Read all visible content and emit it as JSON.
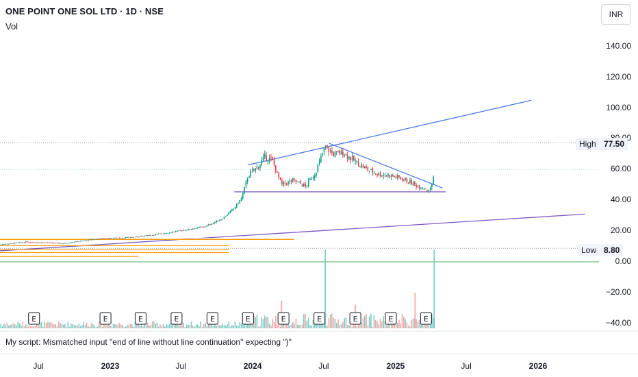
{
  "header": {
    "title": "ONE POINT ONE SOL LTD · 1D · NSE",
    "indicator": "Vol",
    "currency": "INR"
  },
  "y_axis": {
    "ticks": [
      {
        "label": "140.00",
        "value": 140
      },
      {
        "label": "120.00",
        "value": 120
      },
      {
        "label": "100.00",
        "value": 100
      },
      {
        "label": "80.00",
        "value": 80
      },
      {
        "label": "60.00",
        "value": 60
      },
      {
        "label": "40.00",
        "value": 40
      },
      {
        "label": "20.00",
        "value": 20
      },
      {
        "label": "0.00",
        "value": 0
      },
      {
        "label": "−20.00",
        "value": -20
      },
      {
        "label": "−40.00",
        "value": -40
      }
    ]
  },
  "tags": {
    "high_label": "High",
    "high_value": "77.50",
    "low_label": "Low",
    "low_value": "8.80"
  },
  "x_axis": {
    "ticks": [
      {
        "label": "Jul",
        "date": "2022-07-01",
        "bold": false
      },
      {
        "label": "2023",
        "date": "2023-01-01",
        "bold": true
      },
      {
        "label": "Jul",
        "date": "2023-07-01",
        "bold": false
      },
      {
        "label": "2024",
        "date": "2024-01-01",
        "bold": true
      },
      {
        "label": "Jul",
        "date": "2024-07-01",
        "bold": false
      },
      {
        "label": "2025",
        "date": "2025-01-01",
        "bold": true
      },
      {
        "label": "Jul",
        "date": "2025-07-01",
        "bold": false
      },
      {
        "label": "2026",
        "date": "2026-01-01",
        "bold": true
      }
    ]
  },
  "earnings_badge": "E",
  "message": "My script: Mismatched input \"end of line without line continuation\" expecting \")\"",
  "colors": {
    "up": "#089981",
    "down": "#f23645",
    "trendline": "#4a7ce8",
    "support": "#7e57c2",
    "orange": "#ff9800",
    "zero_line": "#4caf50"
  },
  "chart_data": {
    "type": "candlestick",
    "symbol": "ONE POINT ONE SOL LTD",
    "interval": "1D",
    "exchange": "NSE",
    "price_high": 77.5,
    "price_low": 8.8,
    "ylim": [
      -40,
      145
    ],
    "price_path": [
      {
        "date": "2022-03-15",
        "price": 11
      },
      {
        "date": "2022-06-01",
        "price": 13
      },
      {
        "date": "2022-09-01",
        "price": 12
      },
      {
        "date": "2022-12-01",
        "price": 15
      },
      {
        "date": "2023-03-01",
        "price": 16
      },
      {
        "date": "2023-06-01",
        "price": 19
      },
      {
        "date": "2023-09-01",
        "price": 23
      },
      {
        "date": "2023-10-15",
        "price": 28
      },
      {
        "date": "2023-11-15",
        "price": 35
      },
      {
        "date": "2023-12-05",
        "price": 42
      },
      {
        "date": "2023-12-20",
        "price": 56
      },
      {
        "date": "2024-01-15",
        "price": 62
      },
      {
        "date": "2024-02-01",
        "price": 68
      },
      {
        "date": "2024-02-20",
        "price": 66
      },
      {
        "date": "2024-03-15",
        "price": 50
      },
      {
        "date": "2024-04-15",
        "price": 53
      },
      {
        "date": "2024-05-15",
        "price": 49
      },
      {
        "date": "2024-06-10",
        "price": 58
      },
      {
        "date": "2024-07-05",
        "price": 75
      },
      {
        "date": "2024-07-25",
        "price": 70
      },
      {
        "date": "2024-08-20",
        "price": 71
      },
      {
        "date": "2024-09-20",
        "price": 65
      },
      {
        "date": "2024-10-20",
        "price": 60
      },
      {
        "date": "2024-11-20",
        "price": 57
      },
      {
        "date": "2024-12-20",
        "price": 56
      },
      {
        "date": "2025-01-20",
        "price": 54
      },
      {
        "date": "2025-02-20",
        "price": 50
      },
      {
        "date": "2025-03-15",
        "price": 48
      },
      {
        "date": "2025-04-01",
        "price": 47
      },
      {
        "date": "2025-04-10",
        "price": 58
      }
    ],
    "earnings_dates": [
      "2022-06-20",
      "2022-12-20",
      "2023-03-20",
      "2023-06-20",
      "2023-09-20",
      "2023-12-20",
      "2024-03-20",
      "2024-06-20",
      "2024-09-20",
      "2024-12-20",
      "2025-03-20"
    ],
    "volume_spikes": [
      {
        "date": "2024-07-05",
        "level": 1.0
      },
      {
        "date": "2025-04-10",
        "level": 1.0
      },
      {
        "date": "2024-03-15",
        "level": 0.35
      },
      {
        "date": "2024-09-20",
        "level": 0.3
      },
      {
        "date": "2025-02-20",
        "level": 0.45
      }
    ],
    "drawings": {
      "upper_trendline": {
        "from": {
          "date": "2023-12-20",
          "price": 63
        },
        "to": {
          "date": "2025-12-15",
          "price": 105
        }
      },
      "descending_trendline": {
        "from": {
          "date": "2024-07-15",
          "price": 77
        },
        "to": {
          "date": "2025-05-01",
          "price": 48
        }
      },
      "support_line": {
        "from": {
          "date": "2023-11-15",
          "price": 45.5
        },
        "to": {
          "date": "2025-05-10",
          "price": 45.5
        }
      },
      "long_support_line": {
        "from": {
          "date": "2022-03-15",
          "price": 7
        },
        "to": {
          "date": "2026-05-01",
          "price": 31
        }
      },
      "orange_levels": [
        {
          "price": 14.5,
          "until": "2024-04-15"
        },
        {
          "price": 10.5,
          "until": "2023-11-01"
        },
        {
          "price": 8.0,
          "until": "2023-11-01"
        },
        {
          "price": 6.0,
          "until": "2023-11-01"
        },
        {
          "price": 3.5,
          "until": "2023-03-15"
        }
      ]
    }
  }
}
